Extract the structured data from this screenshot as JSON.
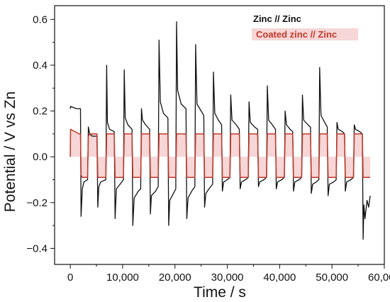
{
  "chart_data": {
    "type": "line",
    "xlabel": "Time / s",
    "ylabel": "Potential / V vs Zn",
    "xlim": [
      -3000,
      60000
    ],
    "ylim": [
      -0.47,
      0.66
    ],
    "x_ticks": [
      0,
      10000,
      20000,
      30000,
      40000,
      50000,
      60000
    ],
    "x_tick_labels": [
      "0",
      "10,000",
      "20,000",
      "30,000",
      "40,000",
      "50,000",
      "60,000"
    ],
    "y_ticks": [
      -0.4,
      -0.2,
      0.0,
      0.2,
      0.4,
      0.6
    ],
    "y_tick_labels": [
      "−0.4",
      "−0.2",
      "0.0",
      "0.2",
      "0.4",
      "0.6"
    ],
    "legend_position": "top-right",
    "colors": {
      "zinc": "#111111",
      "coated": "#c0392b",
      "coated_fill": "#f6d6d6"
    },
    "series": [
      {
        "name": "Zinc // Zinc",
        "color": "#111111",
        "x": [
          0,
          50,
          1200,
          1950,
          2050,
          2300,
          2600,
          3300,
          3450,
          3700,
          4200,
          5100,
          5250,
          5450,
          5800,
          6800,
          6950,
          7100,
          7500,
          8400,
          8550,
          8800,
          9500,
          10150,
          10300,
          10500,
          11000,
          11800,
          11950,
          12200,
          13000,
          13450,
          13600,
          13800,
          14400,
          15150,
          15300,
          15500,
          16300,
          16800,
          16950,
          17200,
          17800,
          18650,
          18800,
          19000,
          19700,
          20150,
          20300,
          20500,
          21200,
          22100,
          22250,
          22500,
          23200,
          23800,
          23950,
          24200,
          25000,
          25500,
          25650,
          25900,
          26500,
          27200,
          27350,
          27600,
          28300,
          28900,
          29050,
          29300,
          30000,
          30500,
          30650,
          30900,
          31700,
          32300,
          32450,
          32700,
          33500,
          34000,
          34150,
          34400,
          35200,
          35800,
          35950,
          36200,
          37000,
          37500,
          37650,
          37900,
          38600,
          39200,
          39350,
          39600,
          40400,
          40900,
          41050,
          41300,
          42000,
          42500,
          42650,
          42900,
          43700,
          44200,
          44350,
          44600,
          45400,
          45900,
          46050,
          46300,
          47000,
          47500,
          47650,
          47900,
          48600,
          49100,
          49250,
          49500,
          50300,
          50800,
          50950,
          51200,
          52000,
          52400,
          52550,
          52800,
          53600,
          54100,
          54250,
          54500,
          55300,
          55800,
          55950,
          56100,
          56300,
          56700,
          57000,
          57300
        ],
        "y": [
          0.21,
          0.22,
          0.21,
          0.21,
          -0.26,
          -0.14,
          -0.11,
          -0.1,
          0.13,
          0.1,
          0.09,
          0.09,
          -0.22,
          -0.13,
          -0.11,
          -0.1,
          0.4,
          0.15,
          0.12,
          0.11,
          -0.27,
          -0.14,
          -0.12,
          -0.1,
          0.38,
          0.17,
          0.14,
          0.12,
          -0.3,
          -0.18,
          -0.15,
          -0.14,
          0.21,
          0.16,
          0.14,
          0.12,
          -0.25,
          -0.17,
          -0.15,
          -0.13,
          0.51,
          0.24,
          0.19,
          0.17,
          -0.3,
          -0.19,
          -0.16,
          -0.14,
          0.59,
          0.29,
          0.23,
          0.21,
          -0.27,
          -0.18,
          -0.15,
          -0.13,
          0.49,
          0.23,
          0.2,
          0.18,
          -0.22,
          -0.16,
          -0.14,
          -0.12,
          0.37,
          0.19,
          0.16,
          0.14,
          -0.15,
          -0.11,
          -0.1,
          -0.09,
          0.27,
          0.16,
          0.14,
          0.12,
          -0.14,
          -0.11,
          -0.1,
          -0.09,
          0.24,
          0.15,
          0.13,
          0.12,
          -0.13,
          -0.11,
          -0.1,
          -0.09,
          0.31,
          0.16,
          0.14,
          0.12,
          -0.14,
          -0.11,
          -0.1,
          -0.09,
          0.2,
          0.14,
          0.12,
          0.11,
          -0.15,
          -0.11,
          -0.1,
          -0.09,
          0.27,
          0.16,
          0.14,
          0.13,
          -0.16,
          -0.12,
          -0.11,
          -0.1,
          0.39,
          0.18,
          0.15,
          0.13,
          -0.17,
          -0.12,
          -0.11,
          -0.1,
          0.15,
          0.12,
          0.11,
          0.1,
          -0.15,
          -0.11,
          -0.1,
          -0.09,
          0.14,
          0.12,
          0.11,
          0.1,
          -0.36,
          -0.21,
          -0.27,
          -0.19,
          -0.22,
          -0.17
        ]
      },
      {
        "name": "Coated zinc // Zinc",
        "color": "#c0392b",
        "x": [
          0,
          50,
          1700,
          1950,
          2050,
          2300,
          3300,
          3450,
          3700,
          5100,
          5250,
          5450,
          6800,
          6950,
          7200,
          8400,
          8550,
          8800,
          10150,
          10300,
          10500,
          11800,
          11950,
          12200,
          13450,
          13600,
          13800,
          15150,
          15300,
          15500,
          16800,
          16950,
          17200,
          18650,
          18800,
          19000,
          20150,
          20300,
          20500,
          22100,
          22250,
          22500,
          23800,
          23950,
          24200,
          25500,
          25650,
          25900,
          27200,
          27350,
          27600,
          28900,
          29050,
          29300,
          30500,
          30650,
          30900,
          32300,
          32450,
          32700,
          34000,
          34150,
          34400,
          35800,
          35950,
          36200,
          37500,
          37650,
          37900,
          39200,
          39350,
          39600,
          40900,
          41050,
          41300,
          42500,
          42650,
          42900,
          44200,
          44350,
          44600,
          45900,
          46050,
          46300,
          47500,
          47650,
          47900,
          49100,
          49250,
          49500,
          50800,
          50950,
          51200,
          52400,
          52550,
          52800,
          54100,
          54250,
          54500,
          55800,
          55950,
          56200,
          57300
        ],
        "y": [
          0.0,
          0.12,
          0.1,
          0.1,
          -0.08,
          -0.09,
          -0.09,
          0.09,
          0.1,
          0.1,
          -0.09,
          -0.09,
          -0.09,
          0.1,
          0.1,
          0.1,
          -0.09,
          -0.09,
          -0.09,
          0.1,
          0.1,
          0.1,
          -0.09,
          -0.09,
          -0.09,
          0.1,
          0.1,
          0.1,
          -0.09,
          -0.09,
          -0.09,
          0.1,
          0.1,
          0.1,
          -0.09,
          -0.09,
          -0.09,
          0.1,
          0.1,
          0.1,
          -0.09,
          -0.09,
          -0.09,
          0.1,
          0.1,
          0.1,
          -0.09,
          -0.09,
          -0.09,
          0.1,
          0.1,
          0.1,
          -0.09,
          -0.09,
          -0.09,
          0.1,
          0.1,
          0.1,
          -0.09,
          -0.09,
          -0.09,
          0.1,
          0.1,
          0.1,
          -0.09,
          -0.09,
          -0.09,
          0.1,
          0.1,
          0.1,
          -0.09,
          -0.09,
          -0.09,
          0.1,
          0.1,
          0.1,
          -0.09,
          -0.09,
          -0.09,
          0.1,
          0.1,
          0.1,
          -0.09,
          -0.09,
          -0.09,
          0.1,
          0.1,
          0.1,
          -0.09,
          -0.09,
          -0.09,
          0.1,
          0.1,
          0.1,
          -0.09,
          -0.09,
          -0.09,
          0.1,
          0.1,
          0.1,
          -0.09,
          -0.09,
          -0.09
        ]
      }
    ],
    "legend": [
      {
        "label": "Zinc // Zinc",
        "color": "#111111"
      },
      {
        "label": "Coated zinc // Zinc",
        "color": "#c0392b"
      }
    ]
  }
}
